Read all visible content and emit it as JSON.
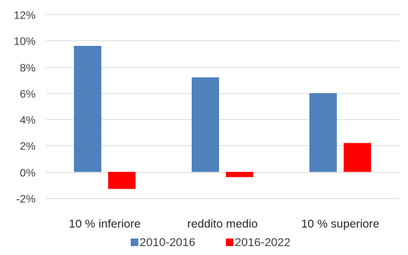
{
  "chart_data": {
    "type": "bar",
    "categories": [
      "10 % inferiore",
      "reddito medio",
      "10 % superiore"
    ],
    "series": [
      {
        "name": "2010-2016",
        "values": [
          9.6,
          7.2,
          6.0
        ],
        "color": "#4f81bd"
      },
      {
        "name": "2016-2022",
        "values": [
          -1.3,
          -0.4,
          2.2
        ],
        "color": "#ff0000"
      }
    ],
    "ylim": [
      -2,
      12
    ],
    "yticks": [
      -2,
      0,
      2,
      4,
      6,
      8,
      10,
      12
    ],
    "ytick_labels": [
      "-2%",
      "0%",
      "2%",
      "4%",
      "6%",
      "8%",
      "10%",
      "12%"
    ],
    "grid": true,
    "legend": "bottom",
    "title": "",
    "xlabel": "",
    "ylabel": ""
  }
}
